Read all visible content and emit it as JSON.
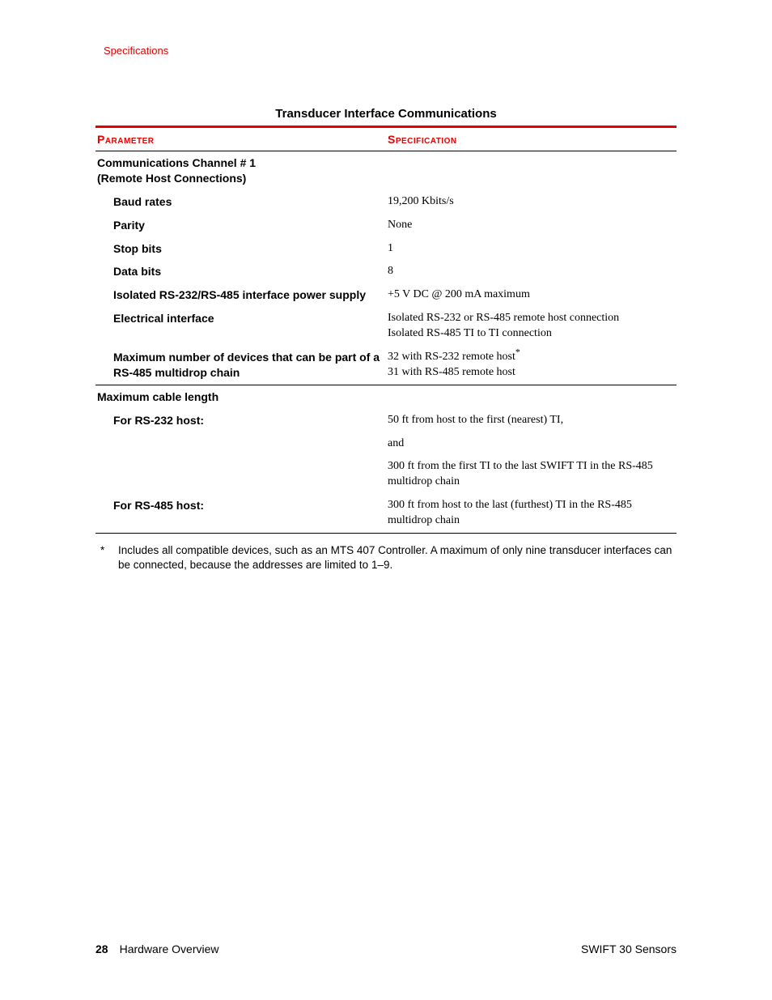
{
  "header": {
    "section_link": "Specifications"
  },
  "table": {
    "title": "Transducer Interface Communications",
    "columns": {
      "parameter": "Parameter",
      "specification": "Specification"
    },
    "group1": {
      "heading_line1": "Communications Channel # 1",
      "heading_line2": "(Remote Host Connections)",
      "rows": {
        "baud": {
          "param": "Baud rates",
          "value": "19,200 Kbits/s"
        },
        "parity": {
          "param": "Parity",
          "value": "None"
        },
        "stop": {
          "param": "Stop bits",
          "value": "1"
        },
        "data": {
          "param": "Data bits",
          "value": "8"
        },
        "psu": {
          "param": "Isolated RS-232/RS-485 interface power supply",
          "value": "+5 V DC @ 200 mA maximum"
        },
        "iface": {
          "param": "Electrical interface",
          "value_line1": "Isolated RS-232 or RS-485 remote host connection",
          "value_line2": "Isolated RS-485 TI to TI connection"
        },
        "maxdev": {
          "param": "Maximum number of devices that can be part of a RS-485 multidrop chain",
          "value_line1_pre": "32 with RS-232 remote host",
          "value_line2": "31 with RS-485 remote host"
        }
      }
    },
    "group2": {
      "heading": "Maximum cable length",
      "rows": {
        "rs232": {
          "param": "For RS-232 host:",
          "value_line1": "50 ft from host to the first (nearest) TI,",
          "value_line2": "and",
          "value_line3": "300 ft from the first TI to the last SWIFT TI in the RS-485 multidrop chain"
        },
        "rs485": {
          "param": "For RS-485 host:",
          "value": "300 ft from host to the last (furthest) TI in the RS-485 multidrop chain"
        }
      }
    }
  },
  "footnote": {
    "marker": "*",
    "text": "Includes all compatible devices, such as an MTS 407 Controller. A maximum of only nine transducer interfaces can be connected, because the addresses are limited to 1–9."
  },
  "footer": {
    "page_number": "28",
    "chapter": "Hardware Overview",
    "doc_title": "SWIFT 30 Sensors"
  },
  "colors": {
    "accent": "#e60000",
    "text": "#000000",
    "background": "#ffffff"
  }
}
